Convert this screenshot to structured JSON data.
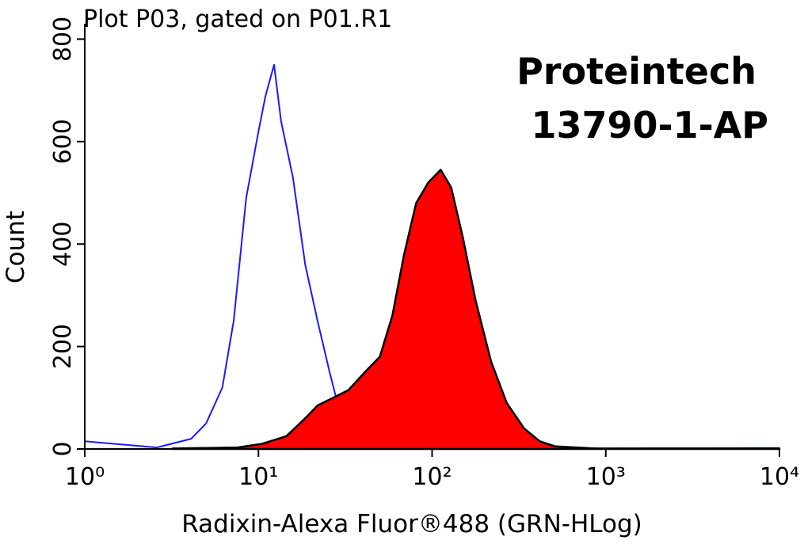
{
  "chart_data": {
    "type": "histogram-overlay",
    "title": "Plot P03, gated on P01.R1",
    "annotations": [
      "Proteintech",
      "13790-1-AP"
    ],
    "xlabel": "Radixin-Alexa Fluor®488 (GRN-HLog)",
    "ylabel": "Count",
    "xscale": "log",
    "xlim": [
      1,
      10000
    ],
    "xticks": [
      {
        "value": 1,
        "label": "10⁰"
      },
      {
        "value": 10,
        "label": "10¹"
      },
      {
        "value": 100,
        "label": "10²"
      },
      {
        "value": 1000,
        "label": "10³"
      },
      {
        "value": 10000,
        "label": "10⁴"
      }
    ],
    "ylim": [
      0,
      830
    ],
    "yticks": [
      0,
      200,
      400,
      600,
      800
    ],
    "series": [
      {
        "style": "line",
        "color": "#1a1aff",
        "x": [
          1,
          2.6,
          4.1,
          5.0,
          6.2,
          7.2,
          8.5,
          10,
          11,
          12.3,
          13.5,
          15.8,
          18.6,
          21.9,
          25.7,
          29.5,
          37,
          46,
          62,
          1000,
          10000
        ],
        "values": [
          15,
          3,
          20,
          50,
          120,
          250,
          490,
          620,
          690,
          750,
          640,
          530,
          360,
          250,
          150,
          70,
          30,
          10,
          3,
          1,
          2
        ]
      },
      {
        "style": "area",
        "color": "#ff0000",
        "x": [
          3.2,
          7.6,
          10.5,
          14.5,
          18.6,
          21.9,
          27,
          33,
          41,
          50,
          59,
          69,
          81,
          95,
          112,
          129,
          151,
          178,
          219,
          269,
          339,
          417,
          513,
          871,
          10000
        ],
        "values": [
          1,
          3,
          10,
          25,
          60,
          85,
          100,
          115,
          150,
          180,
          260,
          380,
          480,
          520,
          545,
          510,
          410,
          290,
          170,
          90,
          40,
          15,
          5,
          1,
          1
        ]
      }
    ]
  }
}
